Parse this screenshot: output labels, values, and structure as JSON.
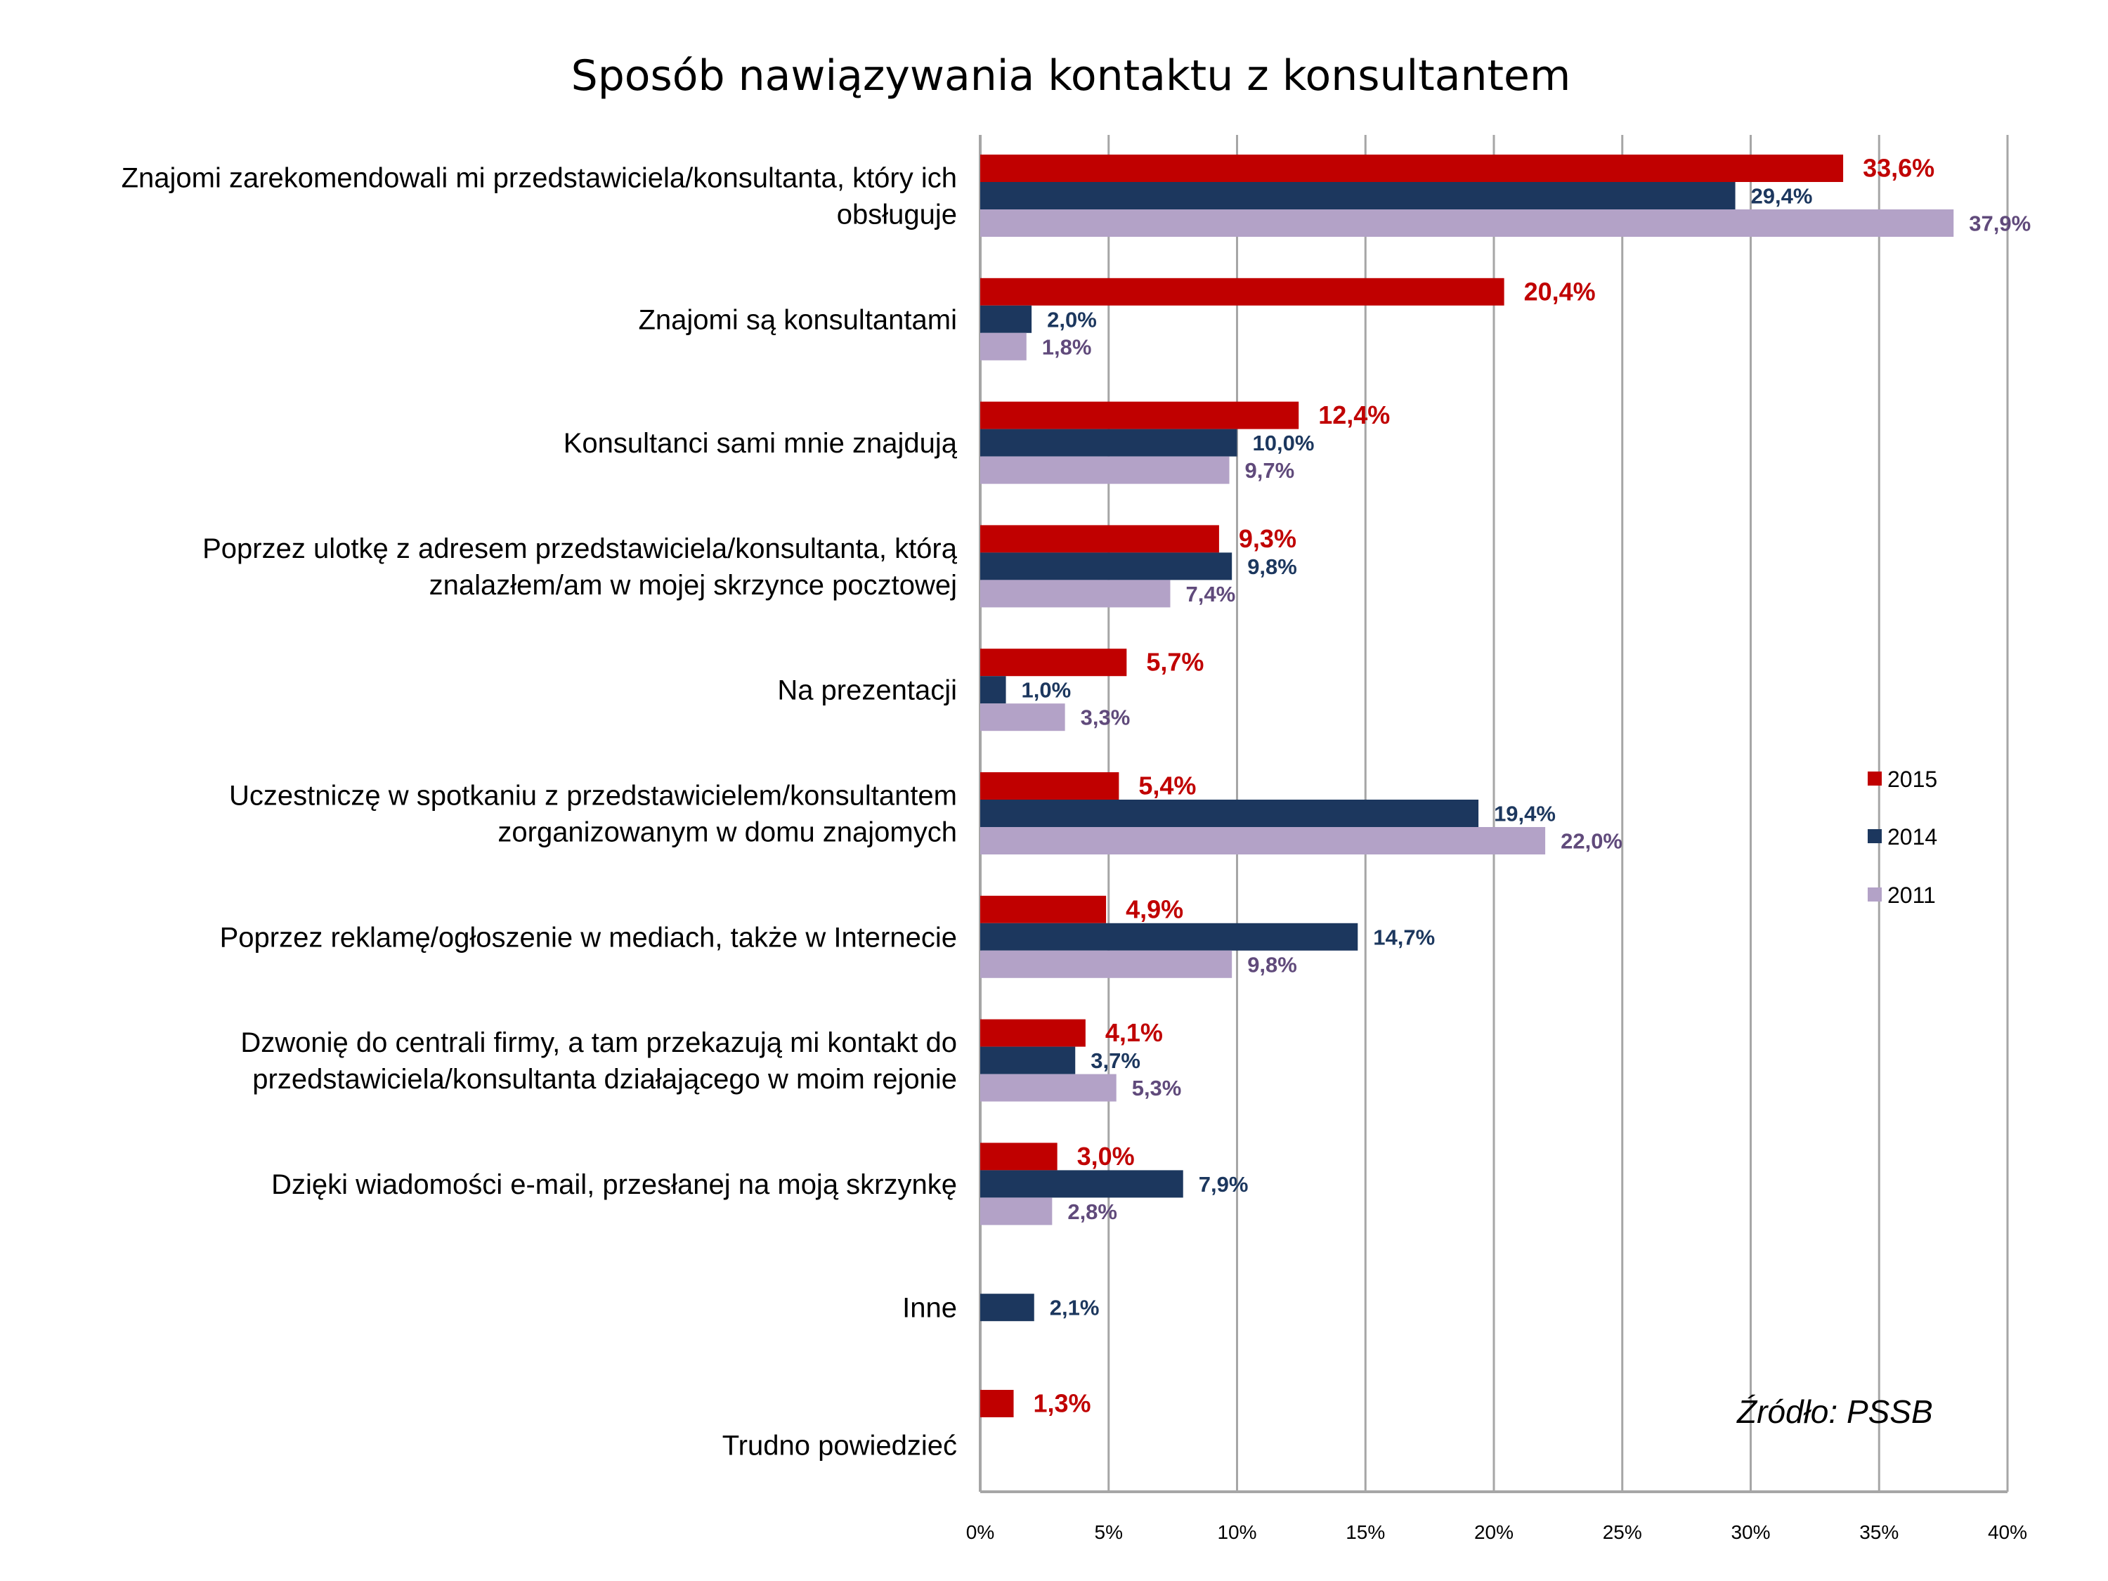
{
  "chart_data": {
    "type": "bar",
    "orientation": "horizontal",
    "title": "Sposób nawiązywania kontaktu z konsultantem",
    "xlabel": "",
    "ylabel": "",
    "xlim": [
      0,
      40
    ],
    "x_ticks": [
      "0%",
      "5%",
      "10%",
      "15%",
      "20%",
      "25%",
      "30%",
      "35%",
      "40%"
    ],
    "x_tick_values": [
      0,
      5,
      10,
      15,
      20,
      25,
      30,
      35,
      40
    ],
    "grid": true,
    "legend_position": "right",
    "categories": [
      [
        "Znajomi zarekomendowali mi przedstawiciela/konsultanta, który ich",
        "obsługuje"
      ],
      [
        "Znajomi są konsultantami"
      ],
      [
        "Konsultanci sami mnie znajdują"
      ],
      [
        "Poprzez ulotkę z adresem przedstawiciela/konsultanta, którą",
        "znalazłem/am w mojej skrzynce pocztowej"
      ],
      [
        "Na prezentacji"
      ],
      [
        "Uczestniczę w spotkaniu z przedstawicielem/konsultantem",
        "zorganizowanym w domu znajomych"
      ],
      [
        "Poprzez reklamę/ogłoszenie w mediach, także w Internecie"
      ],
      [
        "Dzwonię do centrali firmy, a tam przekazują mi kontakt do",
        "przedstawiciela/konsultanta działającego w moim rejonie"
      ],
      [
        "Dzięki wiadomości e-mail, przesłanej na moją skrzynkę "
      ],
      [
        "Inne"
      ],
      [
        "Trudno powiedzieć"
      ]
    ],
    "series": [
      {
        "name": "2015",
        "color": "#C00000",
        "label_color": "#C00000",
        "values": [
          33.6,
          20.4,
          12.4,
          9.3,
          5.7,
          5.4,
          4.9,
          4.1,
          3.0,
          null,
          1.3
        ],
        "labels": [
          "33,6%",
          "20,4%",
          "12,4%",
          "9,3%",
          "5,7%",
          "5,4%",
          "4,9%",
          "4,1%",
          "3,0%",
          null,
          "1,3%"
        ]
      },
      {
        "name": "2014",
        "color": "#1C375E",
        "label_color": "#1C375E",
        "values": [
          29.4,
          2.0,
          10.0,
          9.8,
          1.0,
          19.4,
          14.7,
          3.7,
          7.9,
          2.1,
          null
        ],
        "labels": [
          "29,4%",
          "2,0%",
          "10,0%",
          "9,8%",
          "1,0%",
          "19,4%",
          "14,7%",
          "3,7%",
          "7,9%",
          "2,1%",
          null
        ]
      },
      {
        "name": "2011",
        "color": "#B3A2C7",
        "label_color": "#604A7B",
        "values": [
          37.9,
          1.8,
          9.7,
          7.4,
          3.3,
          22.0,
          9.8,
          5.3,
          2.8,
          null,
          null
        ],
        "labels": [
          "37,9%",
          "1,8%",
          "9,7%",
          "7,4%",
          "3,3%",
          "22,0%",
          "9,8%",
          "5,3%",
          "2,8%",
          null,
          null
        ]
      }
    ],
    "annotations": [
      "Źródło: PSSB"
    ]
  },
  "legend": {
    "items": [
      {
        "label": "2015",
        "color": "#C00000"
      },
      {
        "label": "2014",
        "color": "#1C375E"
      },
      {
        "label": "2011",
        "color": "#B3A2C7"
      }
    ]
  },
  "source_note": "Źródło: PSSB"
}
